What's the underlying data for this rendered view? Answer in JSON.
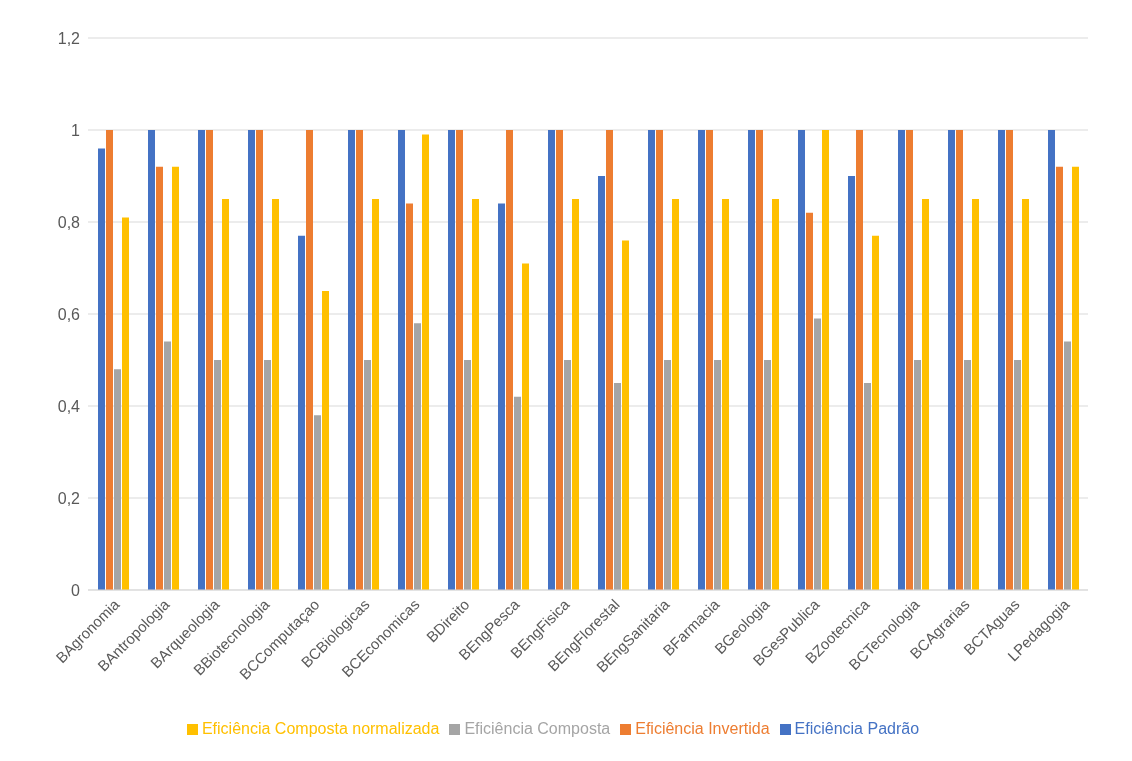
{
  "chart_data": {
    "type": "bar",
    "categories": [
      "BAgronomia",
      "BAntropologia",
      "BArqueologia",
      "BBiotecnologia",
      "BCComputaçao",
      "BCBiologicas",
      "BCEconomicas",
      "BDireito",
      "BEngPesca",
      "BEngFisica",
      "BEngFlorestal",
      "BEngSanitaria",
      "BFarmacia",
      "BGeologia",
      "BGesPublica",
      "BZootecnica",
      "BCTecnologia",
      "BCAgrarias",
      "BCTAguas",
      "LPedagogia"
    ],
    "series": [
      {
        "name": "Eficiência Padrão",
        "color": "#4472c4",
        "values": [
          0.96,
          1,
          1,
          1,
          0.77,
          1,
          1,
          1,
          0.84,
          1,
          0.9,
          1,
          1,
          1,
          1,
          0.9,
          1,
          1,
          1,
          1
        ]
      },
      {
        "name": "Eficiência Invertida",
        "color": "#ed7d31",
        "values": [
          1,
          0.92,
          1,
          1,
          1,
          1,
          0.84,
          1,
          1,
          1,
          1,
          1,
          1,
          1,
          0.82,
          1,
          1,
          1,
          1,
          0.92
        ]
      },
      {
        "name": "Eficiência Composta",
        "color": "#a5a5a5",
        "values": [
          0.48,
          0.54,
          0.5,
          0.5,
          0.38,
          0.5,
          0.58,
          0.5,
          0.42,
          0.5,
          0.45,
          0.5,
          0.5,
          0.5,
          0.59,
          0.45,
          0.5,
          0.5,
          0.5,
          0.54
        ]
      },
      {
        "name": "Eficiência  Composta normalizada",
        "color": "#ffc000",
        "values": [
          0.81,
          0.92,
          0.85,
          0.85,
          0.65,
          0.85,
          0.99,
          0.85,
          0.71,
          0.85,
          0.76,
          0.85,
          0.85,
          0.85,
          1,
          0.77,
          0.85,
          0.85,
          0.85,
          0.92
        ]
      }
    ],
    "ylim": [
      0,
      1.2
    ],
    "yticks": [
      {
        "value": 0,
        "label": "0"
      },
      {
        "value": 0.2,
        "label": "0,2"
      },
      {
        "value": 0.4,
        "label": "0,4"
      },
      {
        "value": 0.6,
        "label": "0,6"
      },
      {
        "value": 0.8,
        "label": "0,8"
      },
      {
        "value": 1,
        "label": "1"
      },
      {
        "value": 1.2,
        "label": "1,2"
      }
    ],
    "grid": "y",
    "legend": "bottom"
  }
}
